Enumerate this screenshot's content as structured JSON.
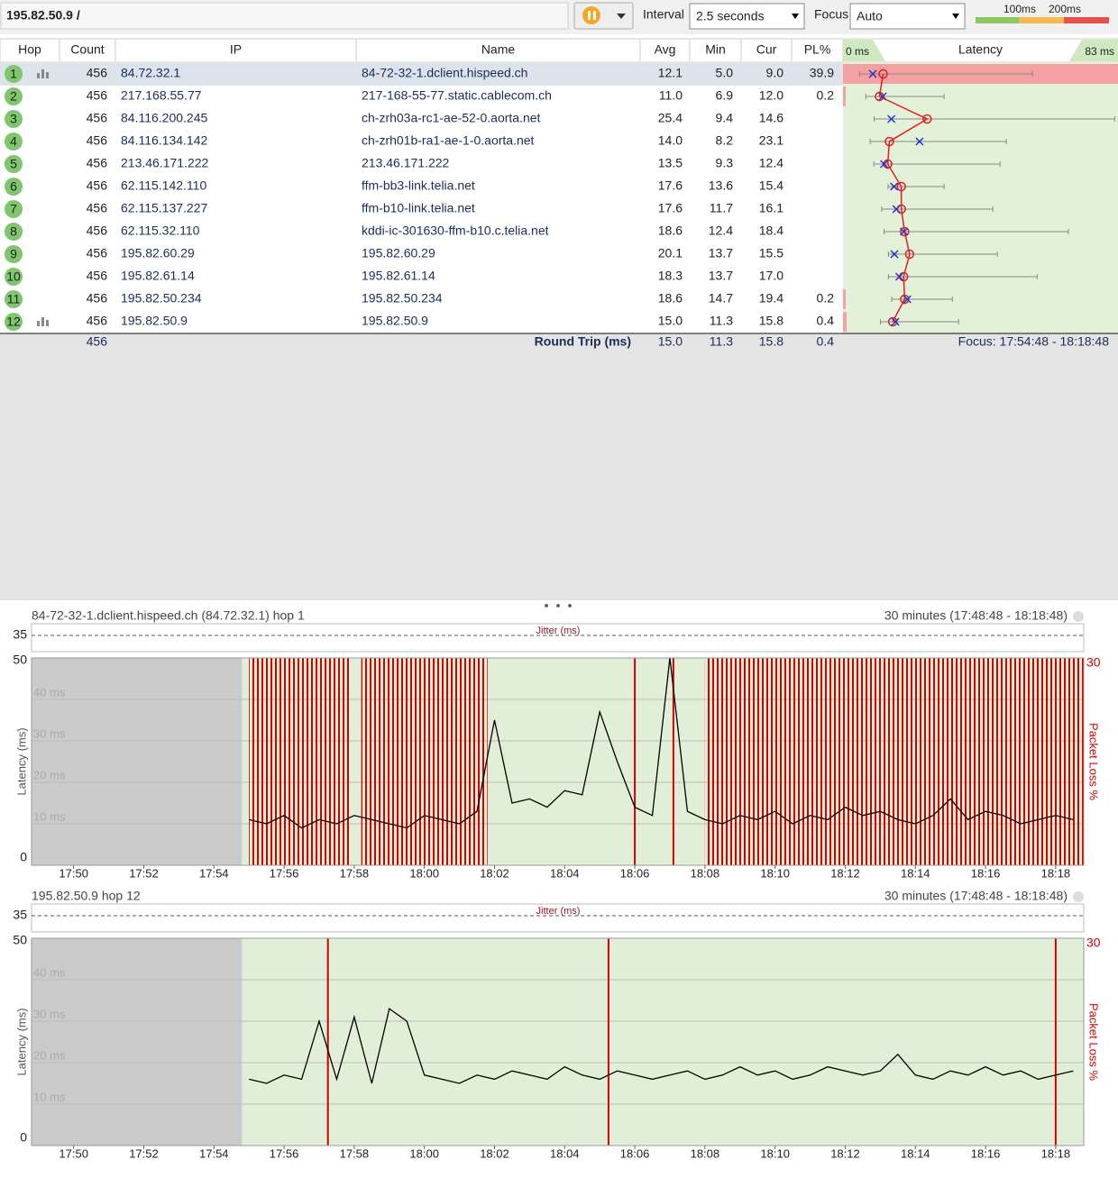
{
  "toolbar": {
    "target": "195.82.50.9 /",
    "interval_label": "Interval",
    "interval": "2.5 seconds",
    "focus_label": "Focus",
    "focus": "Auto",
    "scale_labels": [
      "100ms",
      "200ms"
    ]
  },
  "table": {
    "columns": [
      "Hop",
      "Count",
      "IP",
      "Name",
      "Avg",
      "Min",
      "Cur",
      "PL%",
      "Latency"
    ],
    "latency_min_label": "0 ms",
    "latency_max_label": "83 ms",
    "latency_lim": [
      0,
      83
    ],
    "rows": [
      {
        "hop": 1,
        "count": 456,
        "ip": "84.72.32.1",
        "name": "84-72-32-1.dclient.hispeed.ch",
        "avg": "12.1",
        "min": "5.0",
        "cur": "9.0",
        "pl": "39.9",
        "max": 57.2
      },
      {
        "hop": 2,
        "count": 456,
        "ip": "217.168.55.77",
        "name": "217-168-55-77.static.cablecom.ch",
        "avg": "11.0",
        "min": "6.9",
        "cur": "12.0",
        "pl": "0.2",
        "max": 30.5
      },
      {
        "hop": 3,
        "count": 456,
        "ip": "84.116.200.245",
        "name": "ch-zrh03a-rc1-ae-52-0.aorta.net",
        "avg": "25.4",
        "min": "9.4",
        "cur": "14.6",
        "pl": null,
        "max": 82
      },
      {
        "hop": 4,
        "count": 456,
        "ip": "84.116.134.142",
        "name": "ch-zrh01b-ra1-ae-1-0.aorta.net",
        "avg": "14.0",
        "min": "8.2",
        "cur": "23.1",
        "pl": null,
        "max": 49.3
      },
      {
        "hop": 5,
        "count": 456,
        "ip": "213.46.171.222",
        "name": "213.46.171.222",
        "avg": "13.5",
        "min": "9.3",
        "cur": "12.4",
        "pl": null,
        "max": 47.4
      },
      {
        "hop": 6,
        "count": 456,
        "ip": "62.115.142.110",
        "name": "ffm-bb3-link.telia.net",
        "avg": "17.6",
        "min": "13.6",
        "cur": "15.4",
        "pl": null,
        "max": 30.5
      },
      {
        "hop": 7,
        "count": 456,
        "ip": "62.115.137.227",
        "name": "ffm-b10-link.telia.net",
        "avg": "17.6",
        "min": "11.7",
        "cur": "16.1",
        "pl": null,
        "max": 45.2
      },
      {
        "hop": 8,
        "count": 456,
        "ip": "62.115.32.110",
        "name": "kddi-ic-301630-ffm-b10.c.telia.net",
        "avg": "18.6",
        "min": "12.4",
        "cur": "18.4",
        "pl": null,
        "max": 68
      },
      {
        "hop": 9,
        "count": 456,
        "ip": "195.82.60.29",
        "name": "195.82.60.29",
        "avg": "20.1",
        "min": "13.7",
        "cur": "15.5",
        "pl": null,
        "max": 46.6
      },
      {
        "hop": 10,
        "count": 456,
        "ip": "195.82.61.14",
        "name": "195.82.61.14",
        "avg": "18.3",
        "min": "13.7",
        "cur": "17.0",
        "pl": null,
        "max": 58.6
      },
      {
        "hop": 11,
        "count": 456,
        "ip": "195.82.50.234",
        "name": "195.82.50.234",
        "avg": "18.6",
        "min": "14.7",
        "cur": "19.4",
        "pl": "0.2",
        "max": 33
      },
      {
        "hop": 12,
        "count": 456,
        "ip": "195.82.50.9",
        "name": "195.82.50.9",
        "avg": "15.0",
        "min": "11.3",
        "cur": "15.8",
        "pl": "0.4",
        "max": 34.9
      }
    ],
    "round_trip": {
      "count": 456,
      "label": "Round Trip (ms)",
      "avg": "15.0",
      "min": "11.3",
      "cur": "15.8",
      "pl": "0.4"
    },
    "focus": "Focus: 17:54:48 - 18:18:48"
  },
  "graphs": [
    {
      "title": "84-72-32-1.dclient.hispeed.ch (84.72.32.1) hop 1",
      "range": "30 minutes (17:48:48 - 18:18:48)",
      "jitter_label": "Jitter (ms)",
      "jitter_tick": 35,
      "y_label": "Latency (ms)",
      "y2_label": "Packet Loss %",
      "xlim": [
        1068.8,
        1098.8
      ],
      "xticks": [
        {
          "value": 1070,
          "label": "17:50"
        },
        {
          "value": 1072,
          "label": "17:52"
        },
        {
          "value": 1074,
          "label": "17:54"
        },
        {
          "value": 1076,
          "label": "17:56"
        },
        {
          "value": 1078,
          "label": "17:58"
        },
        {
          "value": 1080,
          "label": "18:00"
        },
        {
          "value": 1082,
          "label": "18:02"
        },
        {
          "value": 1084,
          "label": "18:04"
        },
        {
          "value": 1086,
          "label": "18:06"
        },
        {
          "value": 1088,
          "label": "18:08"
        },
        {
          "value": 1090,
          "label": "18:10"
        },
        {
          "value": 1092,
          "label": "18:12"
        },
        {
          "value": 1094,
          "label": "18:14"
        },
        {
          "value": 1096,
          "label": "18:16"
        },
        {
          "value": 1098,
          "label": "18:18"
        }
      ],
      "ylim": [
        0,
        50
      ],
      "yticks": [
        0,
        {
          "value": 10,
          "label": "10 ms"
        },
        {
          "value": 20,
          "label": "20 ms"
        },
        {
          "value": 30,
          "label": "30 ms"
        },
        {
          "value": 40,
          "label": "40 ms"
        },
        50
      ],
      "y2lim": [
        0,
        30
      ],
      "y2ticks": [
        30
      ],
      "data_start": 1074.8,
      "x": [
        1075,
        1075.5,
        1076,
        1076.5,
        1077,
        1077.5,
        1078,
        1078.5,
        1079,
        1079.5,
        1080,
        1080.5,
        1081,
        1081.5,
        1082,
        1082.5,
        1083,
        1083.5,
        1084,
        1084.5,
        1085,
        1085.5,
        1086,
        1086.5,
        1087,
        1087.5,
        1088,
        1088.5,
        1089,
        1089.5,
        1090,
        1090.5,
        1091,
        1091.5,
        1092,
        1092.5,
        1093,
        1093.5,
        1094,
        1094.5,
        1095,
        1095.5,
        1096,
        1096.5,
        1097,
        1097.5,
        1098,
        1098.5
      ],
      "values": [
        11,
        10,
        12,
        9,
        11,
        10,
        12,
        11,
        10,
        9,
        12,
        11,
        10,
        13,
        35,
        15,
        16,
        14,
        18,
        17,
        37,
        25,
        14,
        12,
        50,
        13,
        11,
        10,
        12,
        11,
        13,
        10,
        12,
        11,
        14,
        12,
        13,
        11,
        10,
        12,
        16,
        11,
        13,
        12,
        10,
        11,
        12,
        11
      ],
      "loss_bands": [
        {
          "from": 1075,
          "to": 1077.9,
          "value": 30
        },
        {
          "from": 1078.2,
          "to": 1081.8,
          "value": 30
        },
        {
          "from": 1088,
          "to": 1098.8,
          "value": 30
        }
      ],
      "loss_events": [
        {
          "x": 1086,
          "value": 30
        },
        {
          "x": 1087.1,
          "value": 30
        }
      ]
    },
    {
      "title": "195.82.50.9 hop 12",
      "range": "30 minutes (17:48:48 - 18:18:48)",
      "jitter_label": "Jitter (ms)",
      "jitter_tick": 35,
      "y_label": "Latency (ms)",
      "y2_label": "Packet Loss %",
      "xlim": [
        1068.8,
        1098.8
      ],
      "xticks": [
        {
          "value": 1070,
          "label": "17:50"
        },
        {
          "value": 1072,
          "label": "17:52"
        },
        {
          "value": 1074,
          "label": "17:54"
        },
        {
          "value": 1076,
          "label": "17:56"
        },
        {
          "value": 1078,
          "label": "17:58"
        },
        {
          "value": 1080,
          "label": "18:00"
        },
        {
          "value": 1082,
          "label": "18:02"
        },
        {
          "value": 1084,
          "label": "18:04"
        },
        {
          "value": 1086,
          "label": "18:06"
        },
        {
          "value": 1088,
          "label": "18:08"
        },
        {
          "value": 1090,
          "label": "18:10"
        },
        {
          "value": 1092,
          "label": "18:12"
        },
        {
          "value": 1094,
          "label": "18:14"
        },
        {
          "value": 1096,
          "label": "18:16"
        },
        {
          "value": 1098,
          "label": "18:18"
        }
      ],
      "ylim": [
        0,
        50
      ],
      "yticks": [
        0,
        {
          "value": 10,
          "label": "10 ms"
        },
        {
          "value": 20,
          "label": "20 ms"
        },
        {
          "value": 30,
          "label": "30 ms"
        },
        {
          "value": 40,
          "label": "40 ms"
        },
        50
      ],
      "y2lim": [
        0,
        30
      ],
      "y2ticks": [
        30
      ],
      "data_start": 1074.8,
      "x": [
        1075,
        1075.5,
        1076,
        1076.5,
        1077,
        1077.5,
        1078,
        1078.5,
        1079,
        1079.5,
        1080,
        1080.5,
        1081,
        1081.5,
        1082,
        1082.5,
        1083,
        1083.5,
        1084,
        1084.5,
        1085,
        1085.5,
        1086,
        1086.5,
        1087,
        1087.5,
        1088,
        1088.5,
        1089,
        1089.5,
        1090,
        1090.5,
        1091,
        1091.5,
        1092,
        1092.5,
        1093,
        1093.5,
        1094,
        1094.5,
        1095,
        1095.5,
        1096,
        1096.5,
        1097,
        1097.5,
        1098,
        1098.5
      ],
      "values": [
        16,
        15,
        17,
        16,
        30,
        16,
        31,
        15,
        33,
        30,
        17,
        16,
        15,
        17,
        16,
        18,
        17,
        16,
        19,
        17,
        16,
        18,
        17,
        16,
        17,
        18,
        16,
        17,
        19,
        17,
        18,
        16,
        17,
        19,
        18,
        17,
        18,
        22,
        17,
        16,
        18,
        17,
        19,
        17,
        18,
        16,
        17,
        18
      ],
      "loss_bands": [],
      "loss_events": [
        {
          "x": 1077.25,
          "value": 30
        },
        {
          "x": 1085.25,
          "value": 30
        },
        {
          "x": 1098,
          "value": 30
        }
      ]
    }
  ]
}
